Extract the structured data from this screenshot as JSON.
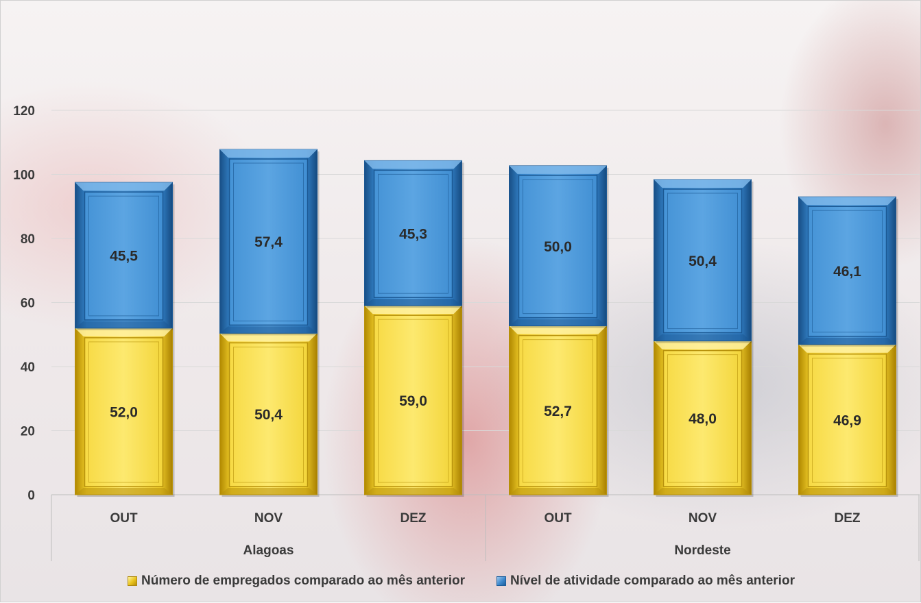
{
  "chart_data": {
    "type": "bar",
    "stacked": true,
    "groups": [
      {
        "label": "Alagoas",
        "categories": [
          "OUT",
          "NOV",
          "DEZ"
        ]
      },
      {
        "label": "Nordeste",
        "categories": [
          "OUT",
          "NOV",
          "DEZ"
        ]
      }
    ],
    "categories": [
      "OUT",
      "NOV",
      "DEZ",
      "OUT",
      "NOV",
      "DEZ"
    ],
    "series": [
      {
        "name": "Número de empregados comparado ao mês anterior",
        "color": "#f2d234",
        "values": [
          52.0,
          50.4,
          59.0,
          52.7,
          48.0,
          46.9
        ],
        "labels": [
          "52,0",
          "50,4",
          "59,0",
          "52,7",
          "48,0",
          "46,9"
        ]
      },
      {
        "name": "Nível de atividade comparado ao mês anterior",
        "color": "#3f8fd6",
        "values": [
          45.5,
          57.4,
          45.3,
          50.0,
          50.4,
          46.1
        ],
        "labels": [
          "45,5",
          "57,4",
          "45,3",
          "50,0",
          "50,4",
          "46,1"
        ]
      }
    ],
    "ylim": [
      0,
      120
    ],
    "yticks": [
      "0",
      "20",
      "40",
      "60",
      "80",
      "100",
      "120"
    ],
    "grid": true,
    "legend_position": "bottom"
  },
  "legend": {
    "items": [
      {
        "label": "Número de empregados comparado ao mês anterior",
        "swatch": "yellow"
      },
      {
        "label": "Nível de atividade comparado ao mês anterior",
        "swatch": "blue"
      }
    ]
  }
}
